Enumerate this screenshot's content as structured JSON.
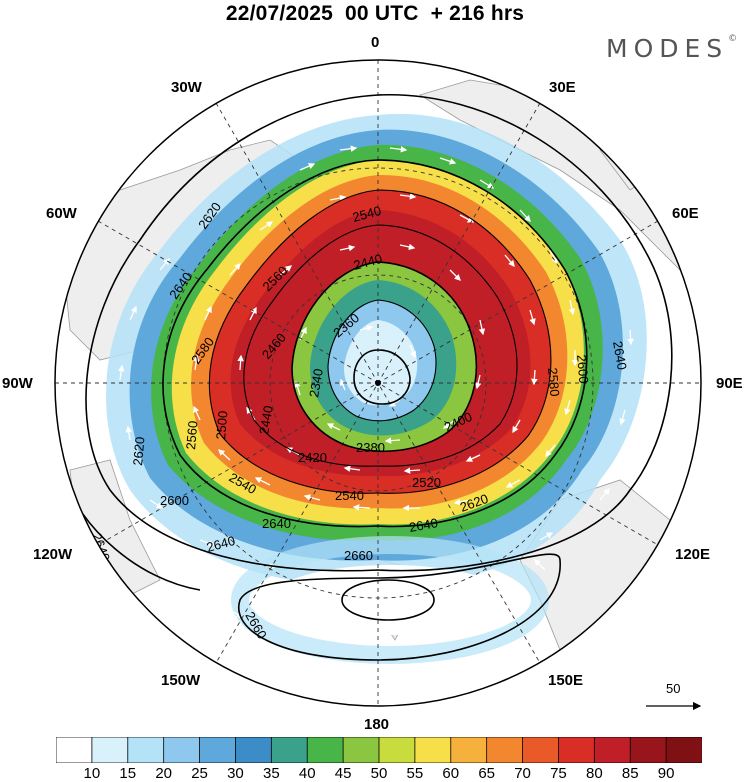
{
  "title": "22/07/2025  00 UTC  + 216 hrs",
  "brand": "MODES",
  "brand_mark": "©",
  "longitude_labels": {
    "n0": "0",
    "n30e": "30E",
    "n60e": "60E",
    "n90e": "90E",
    "n120e": "120E",
    "n150e": "150E",
    "n180": "180",
    "n150w": "150W",
    "n120w": "120W",
    "n90w": "90W",
    "n60w": "60W",
    "n30w": "30W"
  },
  "vector_scale": {
    "label": "50"
  },
  "contours": [
    "2640",
    "2620",
    "2540",
    "2440",
    "2360",
    "2340",
    "2580",
    "2560",
    "2460",
    "2500",
    "2440",
    "2560",
    "2620",
    "2600",
    "2640",
    "2540",
    "2420",
    "2380",
    "2400",
    "2520",
    "2540",
    "2620",
    "2640",
    "2580",
    "2600",
    "2640",
    "2660",
    "2640",
    "2660",
    "2640"
  ],
  "colorbar": {
    "labels": [
      "10",
      "15",
      "20",
      "25",
      "30",
      "35",
      "40",
      "45",
      "50",
      "55",
      "60",
      "65",
      "70",
      "75",
      "80",
      "85",
      "90"
    ],
    "colors": [
      "#ffffff",
      "#d9f1fb",
      "#b4e2f7",
      "#8ec8ee",
      "#5ea8dc",
      "#3c8cc8",
      "#3aa18a",
      "#48b548",
      "#8ac63f",
      "#c8dc3e",
      "#f7df4a",
      "#f6b13c",
      "#f3872f",
      "#ea5a28",
      "#d92e26",
      "#c11f27",
      "#98161b"
    ]
  }
}
